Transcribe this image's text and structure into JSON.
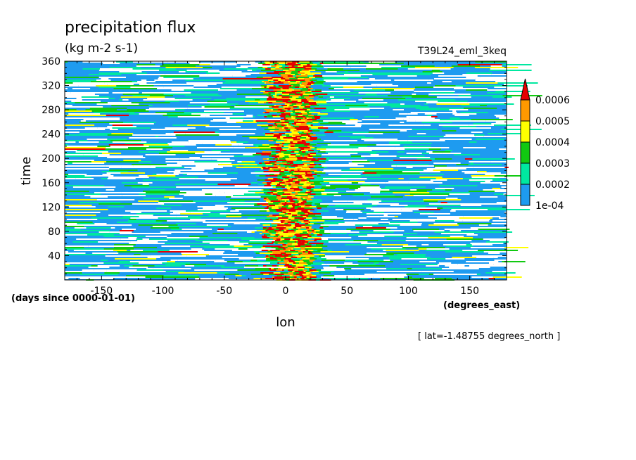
{
  "chart_data": {
    "type": "heatmap",
    "title": "precipitation flux",
    "units": "(kg m-2 s-1)",
    "subtitle_right": "T39L24_eml_3keq",
    "xlabel": "lon",
    "xunits": "(degrees_east)",
    "ylabel": "time",
    "yunits": "(days since 0000-01-01)",
    "annotation": "[ lat=-1.48755 degrees_north ]",
    "xlim": [
      -180,
      180
    ],
    "ylim": [
      0,
      360
    ],
    "x_ticks": [
      -150,
      -100,
      -50,
      0,
      50,
      100,
      150
    ],
    "x_tick_labels": [
      "-150",
      "-100",
      "-50",
      "0",
      "50",
      "100",
      "150"
    ],
    "y_ticks": [
      40,
      80,
      120,
      160,
      200,
      240,
      280,
      320,
      360
    ],
    "y_tick_labels": [
      "40",
      "80",
      "120",
      "160",
      "200",
      "240",
      "280",
      "320",
      "360"
    ],
    "colorbar": {
      "levels": [
        0.0001,
        0.0002,
        0.0003,
        0.0004,
        0.0005,
        0.0006
      ],
      "labels": [
        "1e-04",
        "0.0002",
        "0.0003",
        "0.0004",
        "0.0005",
        "0.0006"
      ],
      "colors": [
        "#1e9bf0",
        "#00e8a0",
        "#11c911",
        "#ffff00",
        "#ff9900",
        "#e60000"
      ],
      "extend": "max",
      "below_color": "#ffffff"
    },
    "pattern": {
      "max_zone_center_lon": 0,
      "max_zone_halfwidth_deg": 20,
      "background_class": "1e-04 to 0.0002 (blue) with scattered white gaps and green/yellow streaks",
      "max_zone_class": "0.0004 to above 0.0006 (green, yellow, orange, red)"
    }
  }
}
